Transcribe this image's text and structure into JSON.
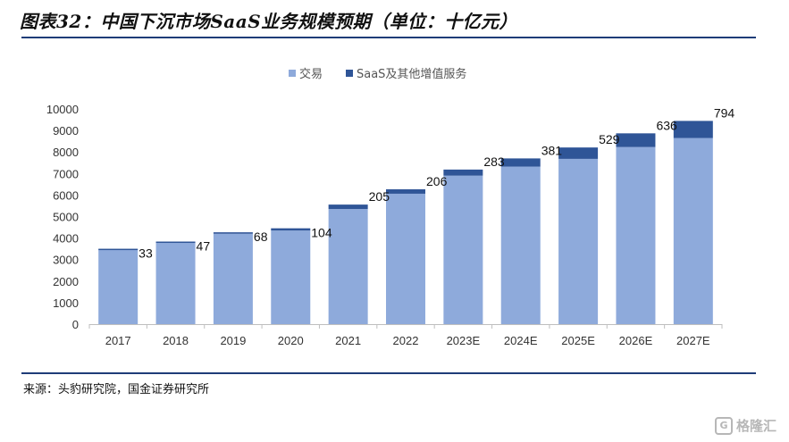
{
  "title": "图表32：中国下沉市场SaaS业务规模预期（单位：十亿元）",
  "source": "来源：头豹研究院，国金证券研究所",
  "watermark": "格隆汇",
  "colors": {
    "transaction": "#8eaadb",
    "saas": "#2f5597",
    "rule": "#1f3d78"
  },
  "chart_data": {
    "type": "bar",
    "stacked": true,
    "categories": [
      "2017",
      "2018",
      "2019",
      "2020",
      "2021",
      "2022",
      "2023E",
      "2024E",
      "2025E",
      "2026E",
      "2027E"
    ],
    "series": [
      {
        "name": "交易",
        "values": [
          3470,
          3790,
          4200,
          4350,
          5350,
          6060,
          6900,
          7320,
          7680,
          8230,
          8650
        ]
      },
      {
        "name": "SaaS及其他增值服务",
        "values": [
          33,
          47,
          68,
          104,
          205,
          206,
          283,
          381,
          529,
          636,
          794
        ]
      }
    ],
    "data_labels": [
      "33",
      "47",
      "68",
      "104",
      "205",
      "206",
      "283",
      "381",
      "529",
      "636",
      "794"
    ],
    "ylim": [
      0,
      10000
    ],
    "yticks": [
      "0",
      "1000",
      "2000",
      "3000",
      "4000",
      "5000",
      "6000",
      "7000",
      "8000",
      "9000",
      "10000"
    ],
    "legend_position": "top-center",
    "grid": false
  }
}
